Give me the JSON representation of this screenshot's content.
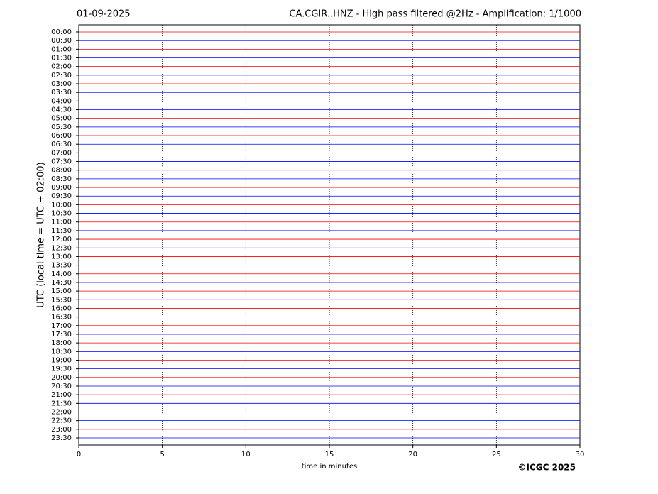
{
  "chart_data": {
    "type": "helicorder",
    "date": "01-09-2025",
    "title": "CA.CGIR..HNZ - High pass filtered @2Hz - Amplification: 1/1000",
    "y_label": "UTC (local time = UTC + 02:00)",
    "x_label": "time in minutes",
    "copyright": "©ICGC 2025",
    "xlim": [
      0,
      30
    ],
    "xticks": [
      0,
      5,
      10,
      15,
      20,
      25,
      30
    ],
    "grid": true,
    "trace_colors": [
      "#ff0000",
      "#0000ff"
    ],
    "rows": [
      "00:00",
      "00:30",
      "01:00",
      "01:30",
      "02:00",
      "02:30",
      "03:00",
      "03:30",
      "04:00",
      "04:30",
      "05:00",
      "05:30",
      "06:00",
      "06:30",
      "07:00",
      "07:30",
      "08:00",
      "08:30",
      "09:00",
      "09:30",
      "10:00",
      "10:30",
      "11:00",
      "11:30",
      "12:00",
      "12:30",
      "13:00",
      "13:30",
      "14:00",
      "14:30",
      "15:00",
      "15:30",
      "16:00",
      "16:30",
      "17:00",
      "17:30",
      "18:00",
      "18:30",
      "19:00",
      "19:30",
      "20:00",
      "20:30",
      "21:00",
      "21:30",
      "22:00",
      "22:30",
      "23:00",
      "23:30"
    ]
  }
}
